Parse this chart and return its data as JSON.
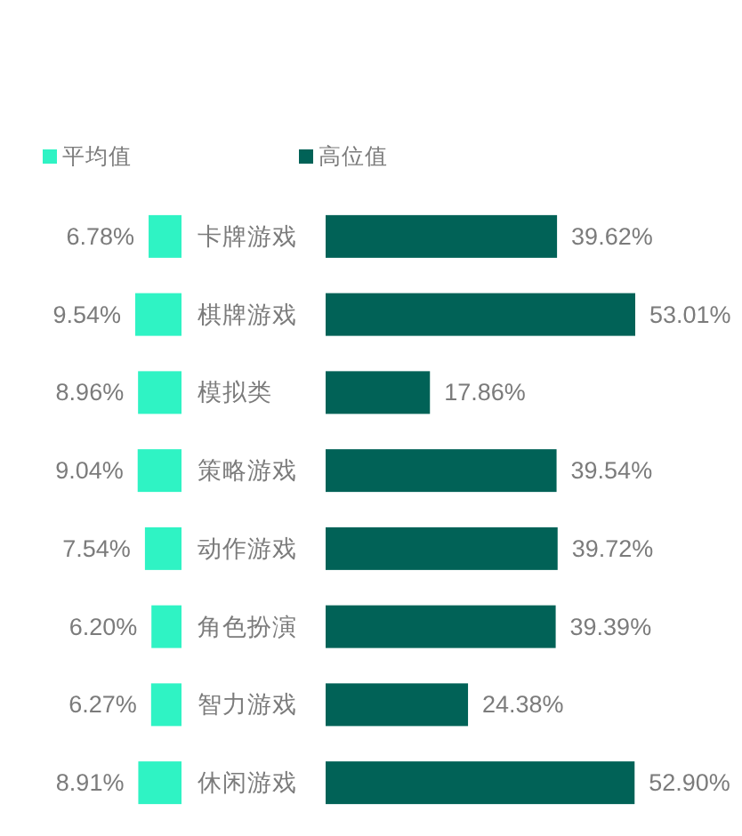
{
  "chart_data": [
    {
      "type": "bar",
      "orientation": "horizontal",
      "legend": "top left",
      "categories": [
        "卡牌游戏",
        "棋牌游戏",
        "模拟类",
        "策略游戏",
        "动作游戏",
        "角色扮演",
        "智力游戏",
        "休闲游戏"
      ],
      "series": [
        {
          "name": "平均值",
          "color": "#2ff3c4",
          "values": [
            6.78,
            9.54,
            8.96,
            9.04,
            7.54,
            6.2,
            6.27,
            8.91
          ],
          "value_labels": [
            "6.78%",
            "9.54%",
            "8.96%",
            "9.04%",
            "7.54%",
            "6.20%",
            "6.27%",
            "8.91%"
          ]
        }
      ]
    },
    {
      "type": "bar",
      "orientation": "horizontal",
      "legend": "top left",
      "categories": [
        null,
        null,
        null,
        null,
        null,
        null,
        null,
        null
      ],
      "series": [
        {
          "name": "高位值",
          "color": "#016257",
          "values": [
            39.62,
            53.01,
            17.86,
            39.54,
            39.72,
            39.39,
            24.38,
            52.9
          ],
          "value_labels": [
            "39.62%",
            "53.01%",
            "17.86%",
            "39.54%",
            "39.72%",
            "39.39%",
            "24.38%",
            "52.90%"
          ]
        }
      ]
    }
  ]
}
